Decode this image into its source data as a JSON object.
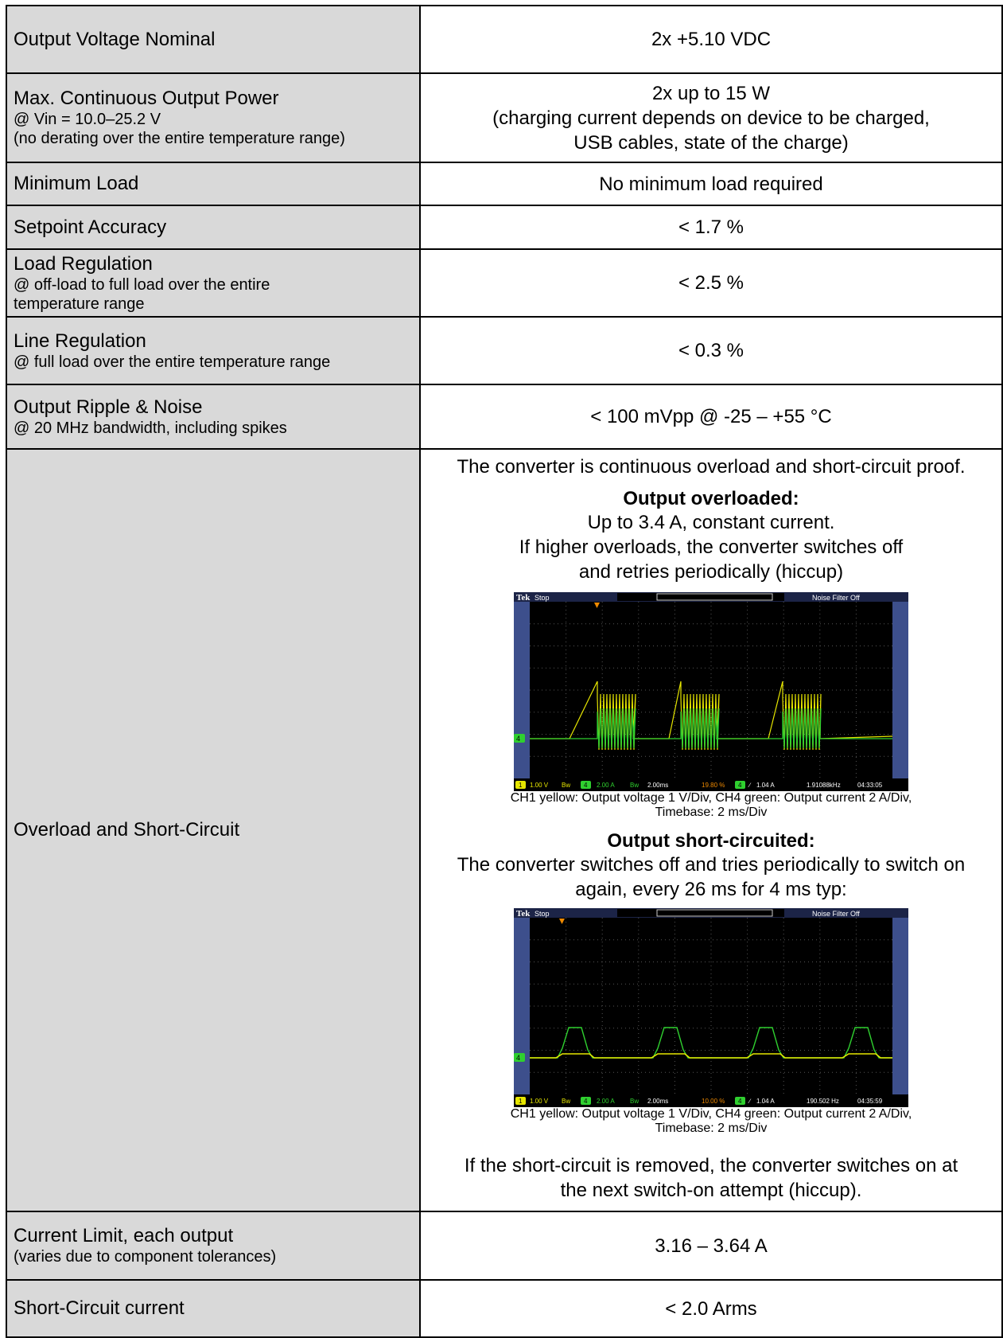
{
  "rows": [
    {
      "label": "Output Voltage Nominal",
      "sub": [],
      "value": [
        "2x +5.10 VDC"
      ]
    },
    {
      "label": "Max. Continuous Output Power",
      "sub": [
        "@ Vin = 10.0–25.2 V",
        "(no derating over the entire temperature range)"
      ],
      "value": [
        "2x up to 15 W",
        "(charging current depends on device to be charged,",
        "USB cables, state of the charge)"
      ]
    },
    {
      "label": "Minimum Load",
      "sub": [],
      "value": [
        "No minimum load required"
      ]
    },
    {
      "label": "Setpoint Accuracy",
      "sub": [],
      "value": [
        "< 1.7 %"
      ]
    },
    {
      "label": "Load Regulation",
      "sub": [
        "@ off-load to full load over the entire",
        "temperature range"
      ],
      "value": [
        "< 2.5 %"
      ]
    },
    {
      "label": "Line Regulation",
      "sub": [
        "@ full load over the entire temperature range"
      ],
      "value": [
        "< 0.3 %"
      ]
    },
    {
      "label": "Output Ripple & Noise",
      "sub": [
        "@ 20 MHz bandwidth, including spikes"
      ],
      "value": [
        "< 100 mVpp @ -25 – +55 °C"
      ]
    },
    {
      "label": "Current Limit, each output",
      "sub": [
        "(varies due to component tolerances)"
      ],
      "value": [
        "3.16 – 3.64 A"
      ]
    },
    {
      "label": "Short-Circuit current",
      "sub": [],
      "value": [
        "< 2.0 Arms"
      ]
    }
  ],
  "overload": {
    "label": "Overload and Short-Circuit",
    "intro": "The converter is continuous overload and short-circuit proof.",
    "overloaded_title": "Output overloaded:",
    "overloaded_text": [
      "Up to 3.4 A, constant current.",
      "If higher overloads, the converter switches off",
      "and retries periodically (hiccup)"
    ],
    "scope1": {
      "brand": "Tek",
      "state": "Stop",
      "filter": "Noise Filter Off",
      "ch1": "1",
      "ch1_scale": "1.00 V",
      "bw1": "Bw",
      "ch4": "4",
      "ch4_scale": "2.00 A",
      "bw4": "Bw",
      "timebase": "2.00ms",
      "trig_pos": "19.80 %",
      "trig_ch": "4",
      "trig_level": "1.04 A",
      "freq": "1.91088kHz",
      "time": "04:33:05",
      "marker": "4"
    },
    "caption1": [
      "CH1 yellow: Output voltage 1 V/Div, CH4 green: Output current 2 A/Div,",
      "Timebase: 2 ms/Div"
    ],
    "short_title": "Output short-circuited:",
    "short_text": [
      "The converter switches off and tries periodically to switch on",
      "again, every 26 ms for 4 ms typ:"
    ],
    "scope2": {
      "brand": "Tek",
      "state": "Stop",
      "filter": "Noise Filter Off",
      "ch1": "1",
      "ch1_scale": "1.00 V",
      "bw1": "Bw",
      "ch4": "4",
      "ch4_scale": "2.00 A",
      "bw4": "Bw",
      "timebase": "2.00ms",
      "trig_pos": "10.00 %",
      "trig_ch": "4",
      "trig_level": "1.04 A",
      "freq": "190.502 Hz",
      "time": "04:35:59",
      "marker": "4"
    },
    "caption2": [
      "CH1 yellow: Output voltage 1 V/Div, CH4 green: Output current 2 A/Div,",
      "Timebase: 2 ms/Div"
    ],
    "removed_text": [
      "If the short-circuit is removed, the converter switches on at",
      "the next switch-on attempt (hiccup)."
    ]
  },
  "colors": {
    "label_bg": "#d9d9d9",
    "scope_frame": "#3d4f8c",
    "ch1": "#e6e600",
    "ch4": "#2fcf2f",
    "trigger": "#f08a00"
  }
}
